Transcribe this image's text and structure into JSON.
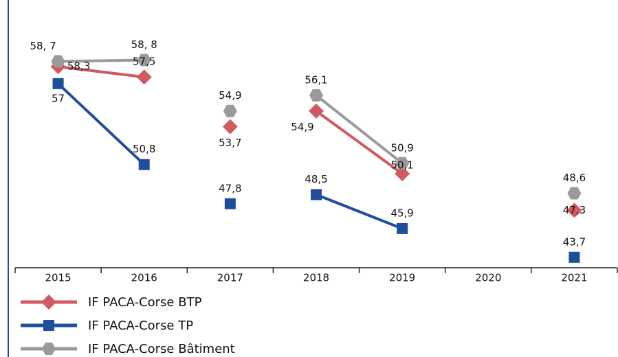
{
  "chart_data": {
    "type": "line",
    "categories": [
      "2015",
      "2016",
      "2017",
      "2018",
      "2019",
      "2020",
      "2021"
    ],
    "joined": [
      true,
      false,
      false,
      true,
      false,
      false
    ],
    "series": [
      {
        "name": "IF PACA-Corse BTP",
        "color": "#d05a5f",
        "marker": "diamond",
        "values": [
          58.3,
          57.5,
          53.7,
          54.9,
          50.1,
          null,
          47.3
        ],
        "value_labels": [
          "58,3",
          "57,5",
          "53,7",
          "54,9",
          "50,1",
          null,
          "47,3"
        ]
      },
      {
        "name": "IF PACA-Corse TP",
        "color": "#1f4e9c",
        "marker": "square",
        "values": [
          57,
          50.8,
          47.8,
          48.5,
          45.9,
          null,
          43.7
        ],
        "value_labels": [
          "57",
          "50,8",
          "47,8",
          "48,5",
          "45,9",
          null,
          "43,7"
        ]
      },
      {
        "name": "IF PACA-Corse Bâtiment",
        "color": "#9a9a9a",
        "marker": "hexagon",
        "values": [
          58.7,
          58.8,
          54.9,
          56.1,
          50.9,
          null,
          48.6
        ],
        "value_labels": [
          "58, 7",
          "58, 8",
          "54,9",
          "56,1",
          "50,9",
          null,
          "48,6"
        ]
      }
    ],
    "ylim": [
      42.9,
      63.4
    ]
  }
}
